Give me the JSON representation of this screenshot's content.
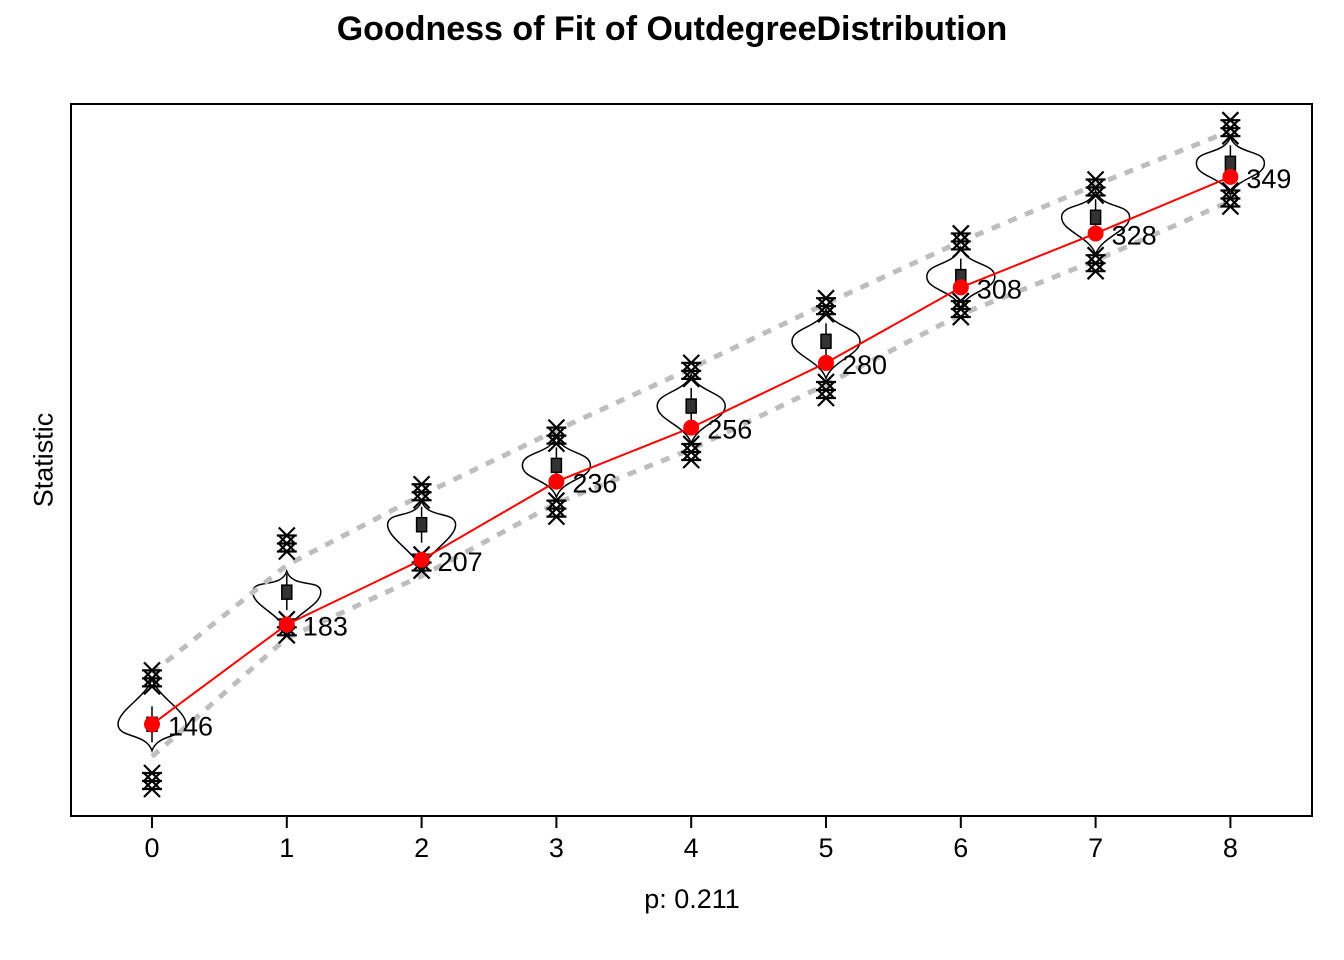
{
  "chart_data": {
    "type": "violin-line",
    "title": "Goodness of Fit of OutdegreeDistribution",
    "ylabel": "Statistic",
    "xlabel": "p: 0.211",
    "categories": [
      "0",
      "1",
      "2",
      "3",
      "4",
      "5",
      "6",
      "7",
      "8"
    ],
    "x": [
      0,
      1,
      2,
      3,
      4,
      5,
      6,
      7,
      8
    ],
    "observed": [
      146,
      183,
      207,
      236,
      256,
      280,
      308,
      328,
      349
    ],
    "observed_labels": [
      "146",
      "183",
      "207",
      "236",
      "256",
      "280",
      "308",
      "328",
      "349"
    ],
    "simulated_median": [
      146,
      195,
      220,
      242,
      264,
      288,
      312,
      334,
      354
    ],
    "band_upper": [
      165,
      205,
      231,
      255,
      278,
      302,
      325,
      346,
      366
    ],
    "band_lower": [
      134,
      178,
      201,
      228,
      248,
      272,
      298,
      318,
      340
    ],
    "outliers_upper": [
      166,
      216,
      235,
      256,
      280,
      304,
      328,
      348,
      370
    ],
    "outliers_lower": [
      122,
      179,
      203,
      223,
      244,
      267,
      297,
      314,
      338
    ],
    "ylim": [
      112,
      376
    ],
    "grid": false,
    "colors": {
      "observed": "#ff0000",
      "band": "#bebebe",
      "violin": "#000000"
    }
  }
}
